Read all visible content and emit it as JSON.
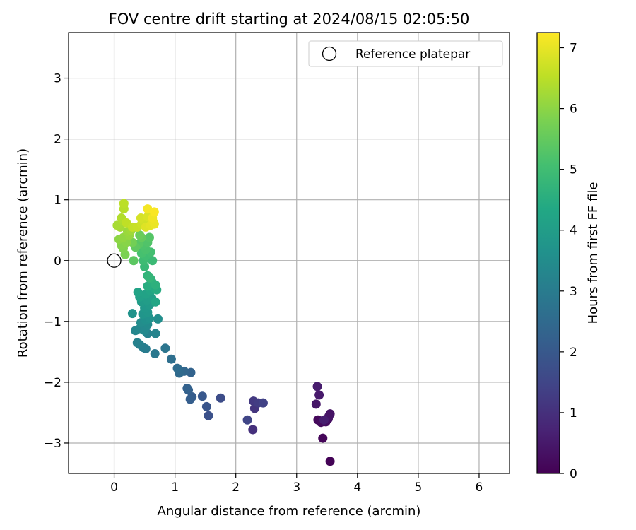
{
  "chart_data": {
    "type": "scatter",
    "title": "FOV centre drift starting at 2024/08/15 02:05:50",
    "xlabel": "Angular distance from reference (arcmin)",
    "ylabel": "Rotation from reference (arcmin)",
    "xlim": [
      -0.75,
      6.5
    ],
    "ylim": [
      -3.5,
      3.75
    ],
    "x_ticks": [
      0,
      1,
      2,
      3,
      4,
      5,
      6
    ],
    "y_ticks": [
      -3,
      -2,
      -1,
      0,
      1,
      2,
      3
    ],
    "grid": true,
    "legend": {
      "position": "top-right",
      "entries": [
        "Reference platepar"
      ]
    },
    "reference_point": {
      "name": "Reference platepar",
      "x": 0,
      "y": 0
    },
    "colorbar": {
      "label": "Hours from first FF file",
      "colormap": "viridis",
      "range": [
        0,
        7.25
      ],
      "ticks": [
        0,
        1,
        2,
        3,
        4,
        5,
        6,
        7
      ]
    },
    "series": [
      {
        "color_by": "hours",
        "points": [
          {
            "x": 3.55,
            "y": -3.3,
            "h": 0.05
          },
          {
            "x": 3.43,
            "y": -2.92,
            "h": 0.1
          },
          {
            "x": 3.35,
            "y": -2.62,
            "h": 0.15
          },
          {
            "x": 3.4,
            "y": -2.66,
            "h": 0.2
          },
          {
            "x": 3.48,
            "y": -2.65,
            "h": 0.25
          },
          {
            "x": 3.52,
            "y": -2.6,
            "h": 0.3
          },
          {
            "x": 3.55,
            "y": -2.52,
            "h": 0.35
          },
          {
            "x": 3.53,
            "y": -2.56,
            "h": 0.4
          },
          {
            "x": 3.32,
            "y": -2.36,
            "h": 0.45
          },
          {
            "x": 3.37,
            "y": -2.21,
            "h": 0.5
          },
          {
            "x": 3.34,
            "y": -2.07,
            "h": 0.55
          },
          {
            "x": 3.45,
            "y": -2.62,
            "h": 0.6
          },
          {
            "x": 2.28,
            "y": -2.78,
            "h": 1.0
          },
          {
            "x": 2.31,
            "y": -2.43,
            "h": 1.1
          },
          {
            "x": 2.29,
            "y": -2.31,
            "h": 1.2
          },
          {
            "x": 2.37,
            "y": -2.34,
            "h": 1.3
          },
          {
            "x": 2.45,
            "y": -2.34,
            "h": 1.4
          },
          {
            "x": 2.19,
            "y": -2.62,
            "h": 1.5
          },
          {
            "x": 1.75,
            "y": -2.26,
            "h": 1.7
          },
          {
            "x": 1.55,
            "y": -2.55,
            "h": 1.8
          },
          {
            "x": 1.52,
            "y": -2.4,
            "h": 1.9
          },
          {
            "x": 1.45,
            "y": -2.23,
            "h": 2.0
          },
          {
            "x": 1.28,
            "y": -2.24,
            "h": 2.1
          },
          {
            "x": 1.25,
            "y": -2.28,
            "h": 2.15
          },
          {
            "x": 1.22,
            "y": -2.13,
            "h": 2.2
          },
          {
            "x": 1.2,
            "y": -2.1,
            "h": 2.25
          },
          {
            "x": 1.26,
            "y": -1.84,
            "h": 2.3
          },
          {
            "x": 1.15,
            "y": -1.82,
            "h": 2.4
          },
          {
            "x": 1.07,
            "y": -1.85,
            "h": 2.5
          },
          {
            "x": 1.04,
            "y": -1.77,
            "h": 2.55
          },
          {
            "x": 0.94,
            "y": -1.62,
            "h": 2.65
          },
          {
            "x": 0.84,
            "y": -1.44,
            "h": 2.8
          },
          {
            "x": 0.67,
            "y": -1.53,
            "h": 2.9
          },
          {
            "x": 0.52,
            "y": -1.45,
            "h": 3.0
          },
          {
            "x": 0.48,
            "y": -1.43,
            "h": 3.05
          },
          {
            "x": 0.42,
            "y": -1.38,
            "h": 3.1
          },
          {
            "x": 0.38,
            "y": -1.35,
            "h": 3.15
          },
          {
            "x": 0.55,
            "y": -1.2,
            "h": 3.2
          },
          {
            "x": 0.68,
            "y": -1.2,
            "h": 3.25
          },
          {
            "x": 0.35,
            "y": -1.15,
            "h": 3.3
          },
          {
            "x": 0.42,
            "y": -1.12,
            "h": 3.35
          },
          {
            "x": 0.5,
            "y": -1.15,
            "h": 3.4
          },
          {
            "x": 0.55,
            "y": -1.05,
            "h": 3.45
          },
          {
            "x": 0.44,
            "y": -1.02,
            "h": 3.5
          },
          {
            "x": 0.72,
            "y": -0.96,
            "h": 3.55
          },
          {
            "x": 0.52,
            "y": -0.98,
            "h": 3.6
          },
          {
            "x": 0.58,
            "y": -0.95,
            "h": 3.65
          },
          {
            "x": 0.3,
            "y": -0.87,
            "h": 3.7
          },
          {
            "x": 0.47,
            "y": -0.88,
            "h": 3.75
          },
          {
            "x": 0.55,
            "y": -0.85,
            "h": 3.8
          },
          {
            "x": 0.5,
            "y": -0.78,
            "h": 3.85
          },
          {
            "x": 0.58,
            "y": -0.73,
            "h": 3.9
          },
          {
            "x": 0.45,
            "y": -0.68,
            "h": 3.95
          },
          {
            "x": 0.54,
            "y": -0.65,
            "h": 4.0
          },
          {
            "x": 0.62,
            "y": -0.62,
            "h": 4.05
          },
          {
            "x": 0.42,
            "y": -0.6,
            "h": 4.1
          },
          {
            "x": 0.52,
            "y": -0.55,
            "h": 4.15
          },
          {
            "x": 0.39,
            "y": -0.52,
            "h": 4.2
          },
          {
            "x": 0.6,
            "y": -0.5,
            "h": 4.25
          },
          {
            "x": 0.68,
            "y": -0.68,
            "h": 4.3
          },
          {
            "x": 0.65,
            "y": -0.45,
            "h": 4.4
          },
          {
            "x": 0.7,
            "y": -0.48,
            "h": 4.45
          },
          {
            "x": 0.55,
            "y": -0.42,
            "h": 4.5
          },
          {
            "x": 0.62,
            "y": -0.35,
            "h": 4.55
          },
          {
            "x": 0.68,
            "y": -0.4,
            "h": 4.6
          },
          {
            "x": 0.6,
            "y": -0.3,
            "h": 4.65
          },
          {
            "x": 0.55,
            "y": -0.25,
            "h": 4.7
          },
          {
            "x": 0.58,
            "y": -0.28,
            "h": 4.75
          },
          {
            "x": 0.5,
            "y": -0.1,
            "h": 4.85
          },
          {
            "x": 0.63,
            "y": 0.0,
            "h": 4.9
          },
          {
            "x": 0.48,
            "y": 0.0,
            "h": 4.95
          },
          {
            "x": 0.52,
            "y": 0.08,
            "h": 5.0
          },
          {
            "x": 0.6,
            "y": 0.14,
            "h": 5.05
          },
          {
            "x": 0.45,
            "y": 0.12,
            "h": 5.1
          },
          {
            "x": 0.52,
            "y": 0.18,
            "h": 5.15
          },
          {
            "x": 0.47,
            "y": 0.25,
            "h": 5.2
          },
          {
            "x": 0.55,
            "y": 0.3,
            "h": 5.25
          },
          {
            "x": 0.58,
            "y": 0.38,
            "h": 5.3
          },
          {
            "x": 0.4,
            "y": 0.27,
            "h": 5.35
          },
          {
            "x": 0.32,
            "y": 0.0,
            "h": 5.4
          },
          {
            "x": 0.35,
            "y": 0.22,
            "h": 5.45
          },
          {
            "x": 0.45,
            "y": 0.38,
            "h": 5.5
          },
          {
            "x": 0.42,
            "y": 0.42,
            "h": 5.6
          },
          {
            "x": 0.3,
            "y": 0.3,
            "h": 5.7
          },
          {
            "x": 0.18,
            "y": 0.1,
            "h": 5.8
          },
          {
            "x": 0.15,
            "y": 0.2,
            "h": 5.85
          },
          {
            "x": 0.12,
            "y": 0.25,
            "h": 5.9
          },
          {
            "x": 0.2,
            "y": 0.3,
            "h": 5.95
          },
          {
            "x": 0.08,
            "y": 0.35,
            "h": 6.0
          },
          {
            "x": 0.15,
            "y": 0.38,
            "h": 6.05
          },
          {
            "x": 0.25,
            "y": 0.42,
            "h": 6.1
          },
          {
            "x": 0.22,
            "y": 0.48,
            "h": 6.15
          },
          {
            "x": 0.28,
            "y": 0.5,
            "h": 6.2
          },
          {
            "x": 0.1,
            "y": 0.55,
            "h": 6.25
          },
          {
            "x": 0.05,
            "y": 0.58,
            "h": 6.3
          },
          {
            "x": 0.15,
            "y": 0.65,
            "h": 6.35
          },
          {
            "x": 0.12,
            "y": 0.7,
            "h": 6.4
          },
          {
            "x": 0.16,
            "y": 0.85,
            "h": 6.45
          },
          {
            "x": 0.16,
            "y": 0.94,
            "h": 6.5
          },
          {
            "x": 0.2,
            "y": 0.62,
            "h": 6.55
          },
          {
            "x": 0.3,
            "y": 0.55,
            "h": 6.6
          },
          {
            "x": 0.38,
            "y": 0.55,
            "h": 6.65
          },
          {
            "x": 0.45,
            "y": 0.6,
            "h": 6.7
          },
          {
            "x": 0.5,
            "y": 0.62,
            "h": 6.75
          },
          {
            "x": 0.44,
            "y": 0.7,
            "h": 6.8
          },
          {
            "x": 0.55,
            "y": 0.72,
            "h": 6.85
          },
          {
            "x": 0.52,
            "y": 0.55,
            "h": 6.9
          },
          {
            "x": 0.6,
            "y": 0.58,
            "h": 6.95
          },
          {
            "x": 0.64,
            "y": 0.64,
            "h": 7.0
          },
          {
            "x": 0.66,
            "y": 0.6,
            "h": 7.05
          },
          {
            "x": 0.63,
            "y": 0.7,
            "h": 7.1
          },
          {
            "x": 0.55,
            "y": 0.85,
            "h": 7.15
          },
          {
            "x": 0.66,
            "y": 0.8,
            "h": 7.2
          }
        ]
      }
    ]
  }
}
